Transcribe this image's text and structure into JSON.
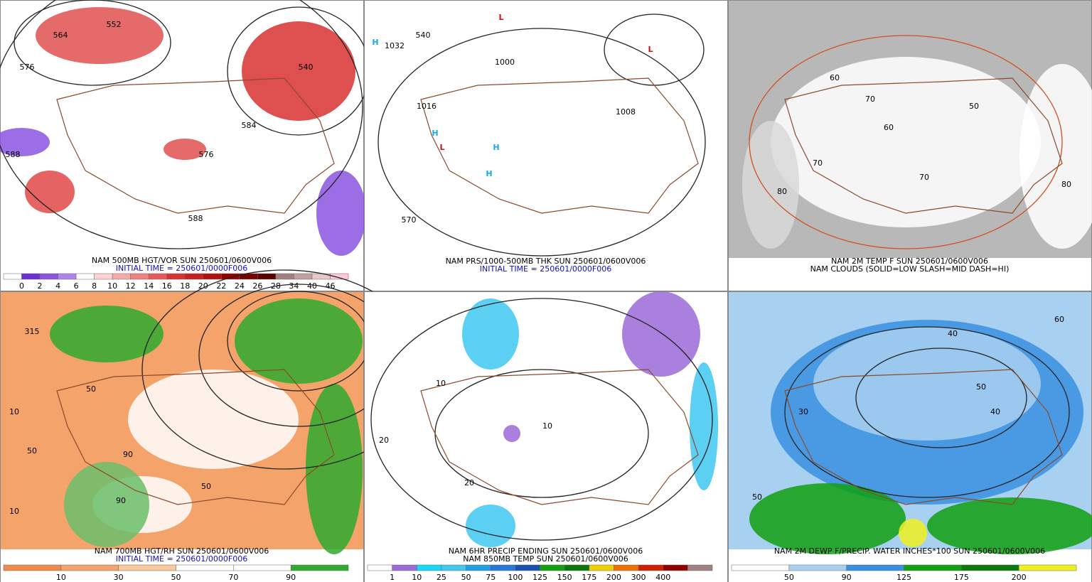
{
  "panels": [
    {
      "caption": [
        "NAM 500MB HGT/VOR SUN 250601/0600V006",
        "INITIAL TIME = 250601/0000F006"
      ],
      "caption_colors": [
        "#000000",
        "#1010c0"
      ],
      "colorbar": {
        "colors": [
          "#ffffff",
          "#6a2fd6",
          "#8a55e0",
          "#ad85ea",
          "#ffffff",
          "#ffd3d3",
          "#f7a8a8",
          "#f07f7f",
          "#e85a5a",
          "#d83333",
          "#c81f1f",
          "#b01010",
          "#960000",
          "#7a0000",
          "#5a0000",
          "#a08080",
          "#c0a0a0",
          "#e8c8c8",
          "#ffc8d8"
        ],
        "labels": [
          "0",
          "2",
          "4",
          "6",
          "8",
          "10",
          "12",
          "14",
          "16",
          "18",
          "20",
          "22",
          "24",
          "26",
          "28",
          "34",
          "40",
          "46"
        ]
      },
      "map_labels": [
        "564",
        "552",
        "576",
        "588",
        "540",
        "584",
        "576",
        "588"
      ]
    },
    {
      "caption": [
        "NAM PRS/1000-500MB THK SUN 250601/0600V006",
        "INITIAL TIME = 250601/0000F006"
      ],
      "caption_colors": [
        "#000000",
        "#1010c0"
      ],
      "map_labels": [
        "H",
        "L",
        "L",
        "H",
        "H",
        "H",
        "L",
        "1032",
        "1016",
        "1000",
        "1008",
        "570",
        "540"
      ]
    },
    {
      "caption": [
        "NAM 2M TEMP F SUN 250601/0600V006",
        "NAM CLOUDS (SOLID=LOW SLASH=MID DASH=HI)"
      ],
      "caption_colors": [
        "#000000",
        "#000000"
      ],
      "map_labels": [
        "60",
        "70",
        "80",
        "70",
        "50",
        "60",
        "80",
        "70"
      ]
    },
    {
      "caption": [
        "NAM 700MB HGT/RH SUN 250601/0600V006",
        "INITIAL TIME = 250601/0000F006"
      ],
      "caption_colors": [
        "#000000",
        "#1010c0"
      ],
      "colorbar": {
        "colors": [
          "#f08a4b",
          "#f4a46a",
          "#fac89b",
          "#ffffff",
          "#ffffff",
          "#2eaa2e"
        ],
        "labels": [
          "10",
          "30",
          "50",
          "70",
          "90"
        ]
      },
      "map_labels": [
        "315",
        "10",
        "50",
        "90",
        "50",
        "10",
        "50",
        "90"
      ]
    },
    {
      "caption": [
        "NAM 6HR PRECIP ENDING SUN 250601/0600V006",
        "NAM 850MB TEMP SUN 250601/0600V006"
      ],
      "caption_colors": [
        "#000000",
        "#000000"
      ],
      "colorbar": {
        "colors": [
          "#ffffff",
          "#9a6ad8",
          "#18d8f8",
          "#40c8f0",
          "#20a0e0",
          "#2878d8",
          "#1850b0",
          "#10a010",
          "#08780a",
          "#f0d000",
          "#f07000",
          "#d02000",
          "#900000",
          "#a08080"
        ],
        "labels": [
          "1",
          "10",
          "25",
          "50",
          "75",
          "100",
          "125",
          "150",
          "175",
          "200",
          "300",
          "400"
        ]
      },
      "map_labels": [
        "20",
        "10",
        "20",
        "10"
      ]
    },
    {
      "caption": [
        "NAM 2M DEWP F/PRECIP. WATER INCHES*100 SUN 250601/0600V006"
      ],
      "caption_colors": [
        "#000000"
      ],
      "colorbar": {
        "colors": [
          "#ffffff",
          "#a8d0f0",
          "#3890e0",
          "#10a010",
          "#0a7a0a",
          "#f0f020"
        ],
        "labels": [
          "50",
          "90",
          "125",
          "175",
          "200"
        ]
      },
      "map_labels": [
        "50",
        "30",
        "40",
        "50",
        "40",
        "60"
      ]
    }
  ]
}
